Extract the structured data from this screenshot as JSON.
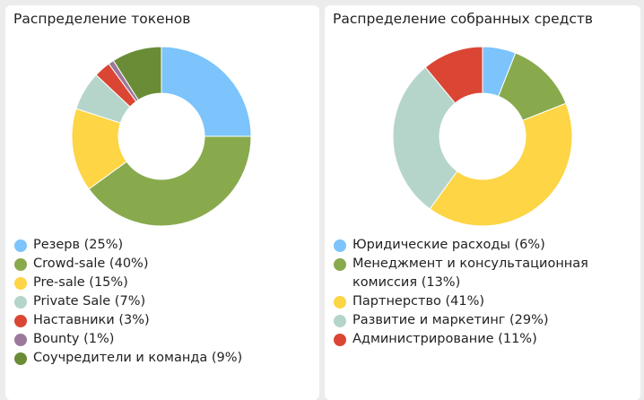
{
  "chart_data": [
    {
      "type": "pie",
      "title": "Распределение токенов",
      "donut": true,
      "slices": [
        {
          "label": "Резерв (25%)",
          "value": 25,
          "color": "#7cc4fb"
        },
        {
          "label": "Crowd-sale (40%)",
          "value": 40,
          "color": "#88aa4d"
        },
        {
          "label": "Pre-sale (15%)",
          "value": 15,
          "color": "#fdd545"
        },
        {
          "label": "Private Sale (7%)",
          "value": 7,
          "color": "#b5d5cb"
        },
        {
          "label": "Наставники (3%)",
          "value": 3,
          "color": "#db4634"
        },
        {
          "label": "Bounty (1%)",
          "value": 1,
          "color": "#9b799b"
        },
        {
          "label": "Соучредители и команда (9%)",
          "value": 9,
          "color": "#6a8c36"
        }
      ]
    },
    {
      "type": "pie",
      "title": "Распределение собранных средств",
      "donut": true,
      "slices": [
        {
          "label": "Юридические расходы (6%)",
          "value": 6,
          "color": "#7cc4fb"
        },
        {
          "label": "Менеджмент и консультационная комиссия (13%)",
          "value": 13,
          "color": "#88aa4d"
        },
        {
          "label": "Партнерство (41%)",
          "value": 41,
          "color": "#fdd545"
        },
        {
          "label": "Развитие и маркетинг (29%)",
          "value": 29,
          "color": "#b5d5cb"
        },
        {
          "label": "Администрирование (11%)",
          "value": 11,
          "color": "#db4634"
        }
      ]
    }
  ]
}
